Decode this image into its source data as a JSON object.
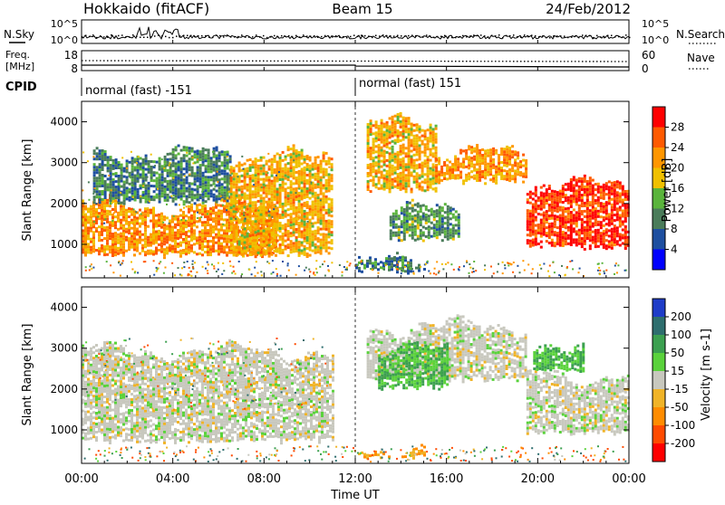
{
  "header": {
    "station": "Hokkaido (fitACF)",
    "beam": "Beam 15",
    "date": "24/Feb/2012"
  },
  "top_panels": {
    "nsky_label": "N.Sky",
    "nsearch_label": "N.Search",
    "noise_ticks": [
      "10^5",
      "10^0"
    ],
    "freq_label_1": "Freq.",
    "freq_label_2": "[MHz]",
    "freq_ticks": [
      "18",
      "8"
    ],
    "nave_ticks": [
      "60",
      "0"
    ],
    "nave_label": "Nave",
    "cpid_label": "CPID",
    "cpid_segments": [
      {
        "label": "normal (fast) -151",
        "start_h": 0,
        "end_h": 12
      },
      {
        "label": "normal (fast) 151",
        "start_h": 12,
        "end_h": 24
      }
    ]
  },
  "colorbars": {
    "power": {
      "label": "Power [dB]",
      "ticks": [
        "28",
        "24",
        "20",
        "16",
        "12",
        "8",
        "4"
      ],
      "colors": [
        "#ff0000",
        "#ff5a00",
        "#ff9600",
        "#f0c000",
        "#5ab43c",
        "#4a7c5a",
        "#1e4fa0",
        "#0000ff"
      ]
    },
    "velocity": {
      "label": "Velocity [m s-1]",
      "ticks": [
        "200",
        "100",
        "50",
        "15",
        "-15",
        "-50",
        "-100",
        "-200"
      ],
      "colors": [
        "#1e3cc8",
        "#2e6e6e",
        "#3ca050",
        "#5ad23c",
        "#c8c8be",
        "#f0b428",
        "#ff8c00",
        "#ff4b00",
        "#ff0000"
      ]
    }
  },
  "axes": {
    "ylabel": "Slant Range [km]",
    "xlabel": "Time UT",
    "yticks": [
      "4000",
      "3000",
      "2000",
      "1000"
    ],
    "xticks": [
      "00:00",
      "04:00",
      "08:00",
      "12:00",
      "16:00",
      "20:00",
      "00:00"
    ]
  },
  "chart_data": [
    {
      "type": "heatmap",
      "title": "Hokkaido (fitACF) Beam 15 24/Feb/2012",
      "panel": "power",
      "xlabel": "Time UT",
      "ylabel": "Slant Range [km]",
      "xlim": [
        0,
        24
      ],
      "ylim": [
        180,
        4500
      ],
      "colorbar_label": "Power [dB]",
      "colorbar_range": [
        0,
        30
      ],
      "regions": [
        {
          "t_start": 0,
          "t_end": 8.5,
          "range_low": 700,
          "range_high": 2000,
          "value": 22
        },
        {
          "t_start": 0.5,
          "t_end": 6.5,
          "range_low": 2000,
          "range_high": 3300,
          "value": 10
        },
        {
          "t_start": 6.5,
          "t_end": 11,
          "range_low": 700,
          "range_high": 3200,
          "value": 20
        },
        {
          "t_start": 12.5,
          "t_end": 15.5,
          "range_low": 2300,
          "range_high": 4000,
          "value": 20
        },
        {
          "t_start": 15.5,
          "t_end": 19.5,
          "range_low": 2500,
          "range_high": 3300,
          "value": 22
        },
        {
          "t_start": 19.5,
          "t_end": 24,
          "range_low": 900,
          "range_high": 2500,
          "value": 28
        },
        {
          "t_start": 13.5,
          "t_end": 16.5,
          "range_low": 1100,
          "range_high": 1900,
          "value": 12
        },
        {
          "t_start": 12,
          "t_end": 15,
          "range_low": 300,
          "range_high": 600,
          "value": 10
        }
      ]
    },
    {
      "type": "heatmap",
      "title": "",
      "panel": "velocity",
      "xlabel": "Time UT",
      "ylabel": "Slant Range [km]",
      "xlim": [
        0,
        24
      ],
      "ylim": [
        180,
        4500
      ],
      "colorbar_label": "Velocity [m s-1]",
      "colorbar_range": [
        -200,
        200
      ],
      "regions": [
        {
          "t_start": 0,
          "t_end": 11,
          "range_low": 700,
          "range_high": 3000,
          "value": 0
        },
        {
          "t_start": 12.5,
          "t_end": 19.5,
          "range_low": 2200,
          "range_high": 3600,
          "value": 0
        },
        {
          "t_start": 13,
          "t_end": 16,
          "range_low": 2000,
          "range_high": 3000,
          "value": 50
        },
        {
          "t_start": 19.5,
          "t_end": 24,
          "range_low": 900,
          "range_high": 2400,
          "value": 0
        },
        {
          "t_start": 19.8,
          "t_end": 22,
          "range_low": 2400,
          "range_high": 3200,
          "value": 50
        },
        {
          "t_start": 12,
          "t_end": 15,
          "range_low": 300,
          "range_high": 600,
          "value": -50
        }
      ]
    }
  ]
}
